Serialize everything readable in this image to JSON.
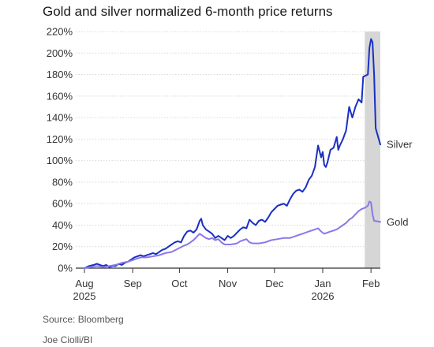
{
  "chart_data": {
    "type": "line",
    "title": "Gold and silver normalized 6-month price returns",
    "y_ticks": [
      "220%",
      "200%",
      "180%",
      "160%",
      "140%",
      "120%",
      "100%",
      "80%",
      "60%",
      "40%",
      "20%",
      "0%"
    ],
    "y_tick_values": [
      220,
      200,
      180,
      160,
      140,
      120,
      100,
      80,
      60,
      40,
      20,
      0
    ],
    "x_ticks": [
      {
        "month": "Aug",
        "year": "2025",
        "day": 0
      },
      {
        "month": "Sep",
        "year": "",
        "day": 31
      },
      {
        "month": "Oct",
        "year": "",
        "day": 61
      },
      {
        "month": "Nov",
        "year": "",
        "day": 92
      },
      {
        "month": "Dec",
        "year": "",
        "day": 122
      },
      {
        "month": "Jan",
        "year": "2026",
        "day": 153
      },
      {
        "month": "Feb",
        "year": "",
        "day": 184
      }
    ],
    "ylim": [
      0,
      220
    ],
    "xlim_days": [
      0,
      190
    ],
    "highlight_days": [
      180,
      190
    ],
    "grid": true,
    "series": [
      {
        "name": "Silver",
        "color": "#1a2fc4",
        "points": [
          [
            0,
            0
          ],
          [
            3,
            2
          ],
          [
            6,
            3
          ],
          [
            8,
            4
          ],
          [
            10,
            3
          ],
          [
            12,
            2
          ],
          [
            14,
            3
          ],
          [
            16,
            1
          ],
          [
            18,
            2
          ],
          [
            20,
            2
          ],
          [
            22,
            4
          ],
          [
            24,
            3
          ],
          [
            26,
            5
          ],
          [
            28,
            6
          ],
          [
            30,
            8
          ],
          [
            32,
            10
          ],
          [
            34,
            11
          ],
          [
            36,
            12
          ],
          [
            38,
            11
          ],
          [
            40,
            12
          ],
          [
            42,
            13
          ],
          [
            44,
            14
          ],
          [
            46,
            13
          ],
          [
            48,
            15
          ],
          [
            50,
            17
          ],
          [
            52,
            18
          ],
          [
            54,
            20
          ],
          [
            56,
            22
          ],
          [
            58,
            24
          ],
          [
            60,
            25
          ],
          [
            62,
            24
          ],
          [
            64,
            30
          ],
          [
            66,
            34
          ],
          [
            68,
            35
          ],
          [
            70,
            33
          ],
          [
            72,
            36
          ],
          [
            74,
            44
          ],
          [
            75,
            46
          ],
          [
            76,
            40
          ],
          [
            78,
            36
          ],
          [
            80,
            34
          ],
          [
            82,
            32
          ],
          [
            84,
            28
          ],
          [
            86,
            30
          ],
          [
            88,
            28
          ],
          [
            90,
            26
          ],
          [
            92,
            30
          ],
          [
            94,
            28
          ],
          [
            96,
            30
          ],
          [
            98,
            33
          ],
          [
            100,
            36
          ],
          [
            102,
            38
          ],
          [
            104,
            37
          ],
          [
            106,
            45
          ],
          [
            108,
            42
          ],
          [
            110,
            40
          ],
          [
            112,
            44
          ],
          [
            114,
            45
          ],
          [
            116,
            43
          ],
          [
            118,
            47
          ],
          [
            120,
            52
          ],
          [
            122,
            55
          ],
          [
            124,
            58
          ],
          [
            126,
            59
          ],
          [
            128,
            60
          ],
          [
            130,
            58
          ],
          [
            132,
            64
          ],
          [
            134,
            69
          ],
          [
            136,
            72
          ],
          [
            138,
            73
          ],
          [
            140,
            71
          ],
          [
            142,
            75
          ],
          [
            144,
            82
          ],
          [
            146,
            86
          ],
          [
            148,
            94
          ],
          [
            150,
            114
          ],
          [
            152,
            103
          ],
          [
            153,
            108
          ],
          [
            154,
            96
          ],
          [
            155,
            94
          ],
          [
            156,
            98
          ],
          [
            158,
            110
          ],
          [
            160,
            112
          ],
          [
            162,
            122
          ],
          [
            163,
            110
          ],
          [
            164,
            114
          ],
          [
            166,
            120
          ],
          [
            168,
            128
          ],
          [
            170,
            150
          ],
          [
            171,
            145
          ],
          [
            172,
            140
          ],
          [
            174,
            150
          ],
          [
            176,
            157
          ],
          [
            178,
            154
          ],
          [
            179,
            178
          ],
          [
            182,
            180
          ],
          [
            183,
            205
          ],
          [
            184,
            213
          ],
          [
            185,
            210
          ],
          [
            186,
            180
          ],
          [
            187,
            130
          ],
          [
            189,
            120
          ],
          [
            190,
            115
          ]
        ]
      },
      {
        "name": "Gold",
        "color": "#8a78e8",
        "points": [
          [
            0,
            0
          ],
          [
            4,
            1
          ],
          [
            8,
            2
          ],
          [
            12,
            1
          ],
          [
            16,
            2
          ],
          [
            20,
            3
          ],
          [
            24,
            5
          ],
          [
            28,
            6
          ],
          [
            32,
            8
          ],
          [
            36,
            10
          ],
          [
            40,
            10
          ],
          [
            44,
            11
          ],
          [
            48,
            12
          ],
          [
            52,
            14
          ],
          [
            56,
            15
          ],
          [
            60,
            18
          ],
          [
            64,
            21
          ],
          [
            66,
            22
          ],
          [
            68,
            24
          ],
          [
            70,
            26
          ],
          [
            72,
            29
          ],
          [
            74,
            32
          ],
          [
            76,
            30
          ],
          [
            78,
            28
          ],
          [
            80,
            27
          ],
          [
            82,
            28
          ],
          [
            84,
            26
          ],
          [
            86,
            27
          ],
          [
            88,
            24
          ],
          [
            90,
            22
          ],
          [
            94,
            22
          ],
          [
            98,
            23
          ],
          [
            100,
            25
          ],
          [
            102,
            26
          ],
          [
            104,
            27
          ],
          [
            106,
            24
          ],
          [
            108,
            23
          ],
          [
            112,
            23
          ],
          [
            116,
            24
          ],
          [
            120,
            26
          ],
          [
            124,
            27
          ],
          [
            128,
            28
          ],
          [
            132,
            28
          ],
          [
            136,
            30
          ],
          [
            140,
            32
          ],
          [
            144,
            34
          ],
          [
            148,
            36
          ],
          [
            150,
            37
          ],
          [
            152,
            34
          ],
          [
            154,
            32
          ],
          [
            156,
            33
          ],
          [
            158,
            34
          ],
          [
            160,
            35
          ],
          [
            162,
            36
          ],
          [
            164,
            38
          ],
          [
            166,
            40
          ],
          [
            168,
            42
          ],
          [
            170,
            45
          ],
          [
            172,
            47
          ],
          [
            174,
            50
          ],
          [
            176,
            53
          ],
          [
            178,
            55
          ],
          [
            180,
            56
          ],
          [
            182,
            58
          ],
          [
            183,
            62
          ],
          [
            184,
            61
          ],
          [
            185,
            50
          ],
          [
            186,
            44
          ],
          [
            190,
            43
          ]
        ]
      }
    ],
    "source": "Source: Bloomberg",
    "credit": "Joe Ciolli/BI"
  }
}
